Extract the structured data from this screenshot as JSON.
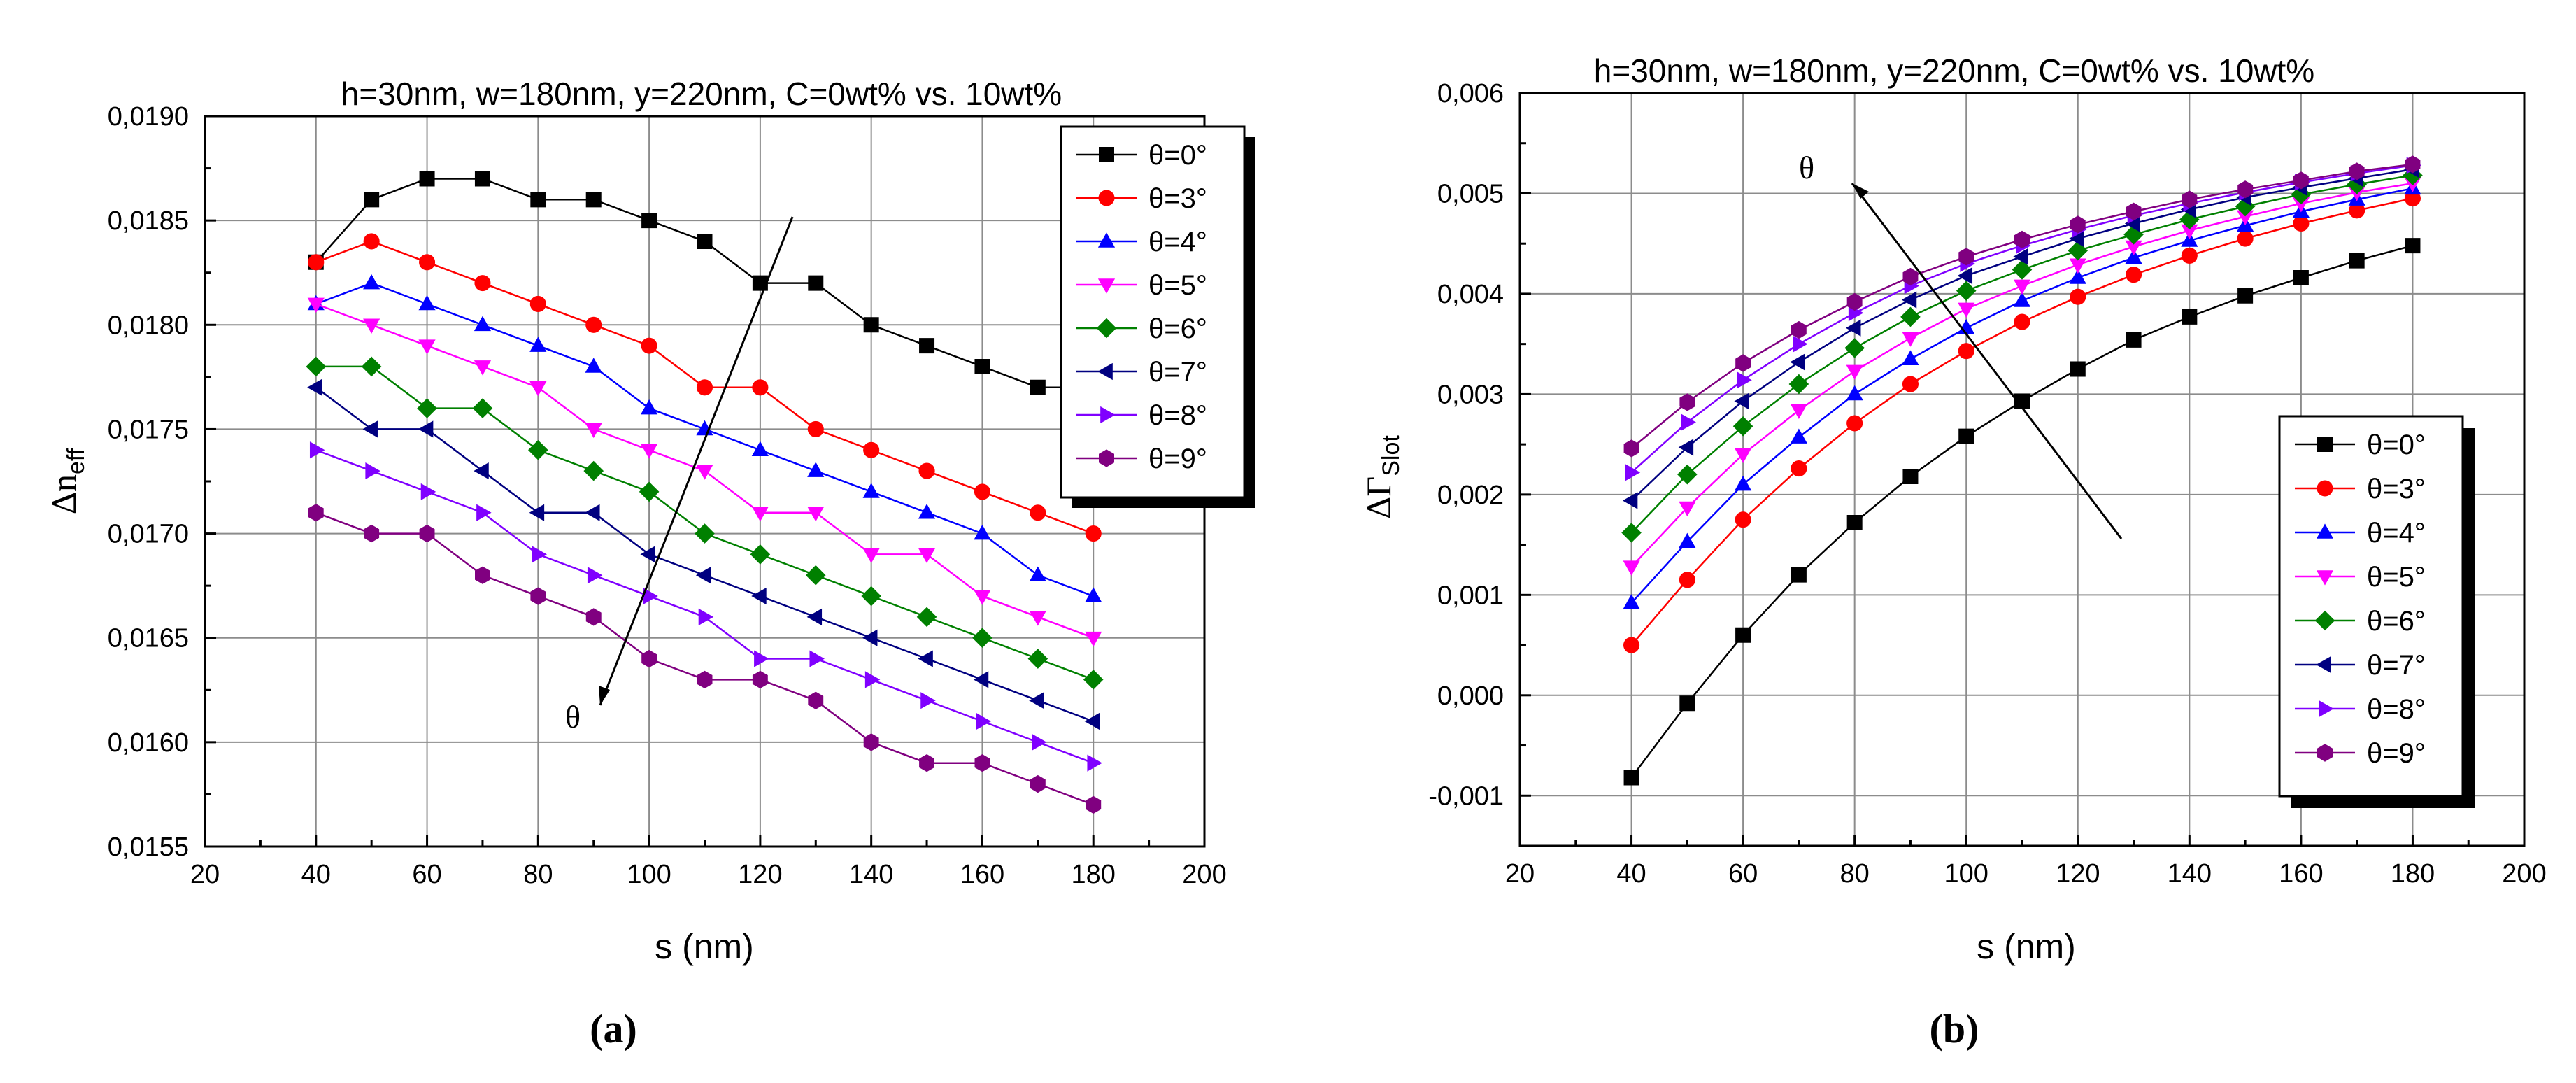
{
  "chart_data": [
    {
      "type": "line",
      "panel_label": "(a)",
      "title": "h=30nm, w=180nm, y=220nm, C=0wt% vs. 10wt%",
      "xlabel": "s (nm)",
      "ylabel": "Δn_eff",
      "xlim": [
        20,
        200
      ],
      "ylim": [
        0.0155,
        0.019
      ],
      "xticks": [
        20,
        40,
        60,
        80,
        100,
        120,
        140,
        160,
        180,
        200
      ],
      "xtick_labels": [
        "20",
        "40",
        "60",
        "80",
        "100",
        "120",
        "140",
        "160",
        "180",
        "200"
      ],
      "yticks": [
        0.0155,
        0.016,
        0.0165,
        0.017,
        0.0175,
        0.018,
        0.0185,
        0.019
      ],
      "ytick_labels": [
        "0,0155",
        "0,0160",
        "0,0165",
        "0,0170",
        "0,0175",
        "0,0180",
        "0,0185",
        "0,0190"
      ],
      "grid": true,
      "legend_position": "top-right",
      "annotation": "θ",
      "x": [
        40,
        50,
        60,
        70,
        80,
        90,
        100,
        110,
        120,
        130,
        140,
        150,
        160,
        170,
        180
      ],
      "series": [
        {
          "name": "θ=0°",
          "color": "#000000",
          "marker": "square",
          "values": [
            0.0183,
            0.0186,
            0.0187,
            0.0187,
            0.0186,
            0.0186,
            0.0185,
            0.0184,
            0.0182,
            0.0182,
            0.018,
            0.0179,
            0.0178,
            0.0177,
            0.0177
          ]
        },
        {
          "name": "θ=3°",
          "color": "#ff0000",
          "marker": "circle",
          "values": [
            0.0183,
            0.0184,
            0.0183,
            0.0182,
            0.0181,
            0.018,
            0.0179,
            0.0177,
            0.0177,
            0.0175,
            0.0174,
            0.0173,
            0.0172,
            0.0171,
            0.017
          ]
        },
        {
          "name": "θ=4°",
          "color": "#0000ff",
          "marker": "triangle-up",
          "values": [
            0.0181,
            0.0182,
            0.0181,
            0.018,
            0.0179,
            0.0178,
            0.0176,
            0.0175,
            0.0174,
            0.0173,
            0.0172,
            0.0171,
            0.017,
            0.0168,
            0.0167
          ]
        },
        {
          "name": "θ=5°",
          "color": "#ff00ff",
          "marker": "triangle-down",
          "values": [
            0.0181,
            0.018,
            0.0179,
            0.0178,
            0.0177,
            0.0175,
            0.0174,
            0.0173,
            0.0171,
            0.0171,
            0.0169,
            0.0169,
            0.0167,
            0.0166,
            0.0165
          ]
        },
        {
          "name": "θ=6°",
          "color": "#008000",
          "marker": "diamond",
          "values": [
            0.0178,
            0.0178,
            0.0176,
            0.0176,
            0.0174,
            0.0173,
            0.0172,
            0.017,
            0.0169,
            0.0168,
            0.0167,
            0.0166,
            0.0165,
            0.0164,
            0.0163
          ]
        },
        {
          "name": "θ=7°",
          "color": "#000080",
          "marker": "triangle-left",
          "values": [
            0.0177,
            0.0175,
            0.0175,
            0.0173,
            0.0171,
            0.0171,
            0.0169,
            0.0168,
            0.0167,
            0.0166,
            0.0165,
            0.0164,
            0.0163,
            0.0162,
            0.0161
          ]
        },
        {
          "name": "θ=8°",
          "color": "#8000ff",
          "marker": "triangle-right",
          "values": [
            0.0174,
            0.0173,
            0.0172,
            0.0171,
            0.0169,
            0.0168,
            0.0167,
            0.0166,
            0.0164,
            0.0164,
            0.0163,
            0.0162,
            0.0161,
            0.016,
            0.0159
          ]
        },
        {
          "name": "θ=9°",
          "color": "#800080",
          "marker": "hexagon",
          "values": [
            0.0171,
            0.017,
            0.017,
            0.0168,
            0.0167,
            0.0166,
            0.0164,
            0.0163,
            0.0163,
            0.0162,
            0.016,
            0.0159,
            0.0159,
            0.0158,
            0.0157
          ]
        }
      ]
    },
    {
      "type": "line",
      "panel_label": "(b)",
      "title": "h=30nm, w=180nm, y=220nm, C=0wt% vs. 10wt%",
      "xlabel": "s (nm)",
      "ylabel": "ΔΓ_Slot",
      "xlim": [
        20,
        200
      ],
      "ylim": [
        -0.0015,
        0.006
      ],
      "xticks": [
        20,
        40,
        60,
        80,
        100,
        120,
        140,
        160,
        180,
        200
      ],
      "xtick_labels": [
        "20",
        "40",
        "60",
        "80",
        "100",
        "120",
        "140",
        "160",
        "180",
        "200"
      ],
      "yticks": [
        -0.001,
        0.0,
        0.001,
        0.002,
        0.003,
        0.004,
        0.005,
        0.006
      ],
      "ytick_labels": [
        "-0,001",
        "0,000",
        "0,001",
        "0,002",
        "0,003",
        "0,004",
        "0,005",
        "0,006"
      ],
      "grid": true,
      "legend_position": "bottom-right",
      "annotation": "θ",
      "x": [
        40,
        50,
        60,
        70,
        80,
        90,
        100,
        110,
        120,
        130,
        140,
        150,
        160,
        170,
        180
      ],
      "series": [
        {
          "name": "θ=0°",
          "color": "#000000",
          "marker": "square",
          "values": [
            -0.00082,
            -8e-05,
            0.0006,
            0.0012,
            0.00172,
            0.00218,
            0.00258,
            0.00293,
            0.00325,
            0.00354,
            0.00377,
            0.00398,
            0.00416,
            0.00433,
            0.00448
          ]
        },
        {
          "name": "θ=3°",
          "color": "#ff0000",
          "marker": "circle",
          "values": [
            0.0005,
            0.00115,
            0.00175,
            0.00226,
            0.00271,
            0.0031,
            0.00343,
            0.00372,
            0.00397,
            0.00419,
            0.00438,
            0.00455,
            0.0047,
            0.00483,
            0.00495
          ]
        },
        {
          "name": "θ=4°",
          "color": "#0000ff",
          "marker": "triangle-up",
          "values": [
            0.00092,
            0.00153,
            0.0021,
            0.00257,
            0.003,
            0.00335,
            0.00366,
            0.00393,
            0.00416,
            0.00436,
            0.00453,
            0.00468,
            0.00482,
            0.00494,
            0.00505
          ]
        },
        {
          "name": "θ=5°",
          "color": "#ff00ff",
          "marker": "triangle-down",
          "values": [
            0.00128,
            0.00187,
            0.0024,
            0.00284,
            0.00323,
            0.00356,
            0.00385,
            0.00408,
            0.00429,
            0.00447,
            0.00463,
            0.00477,
            0.0049,
            0.00501,
            0.0051
          ]
        },
        {
          "name": "θ=6°",
          "color": "#008000",
          "marker": "diamond",
          "values": [
            0.00162,
            0.0022,
            0.00268,
            0.0031,
            0.00346,
            0.00377,
            0.00403,
            0.00424,
            0.00443,
            0.00459,
            0.00474,
            0.00487,
            0.00499,
            0.00509,
            0.00518
          ]
        },
        {
          "name": "θ=7°",
          "color": "#000080",
          "marker": "triangle-left",
          "values": [
            0.00194,
            0.00247,
            0.00293,
            0.00332,
            0.00366,
            0.00394,
            0.00418,
            0.00437,
            0.00455,
            0.0047,
            0.00484,
            0.00496,
            0.00506,
            0.00515,
            0.00524
          ]
        },
        {
          "name": "θ=8°",
          "color": "#8000ff",
          "marker": "triangle-right",
          "values": [
            0.00222,
            0.00272,
            0.00314,
            0.0035,
            0.00381,
            0.00408,
            0.0043,
            0.00448,
            0.00464,
            0.00478,
            0.0049,
            0.00501,
            0.00511,
            0.0052,
            0.00528
          ]
        },
        {
          "name": "θ=9°",
          "color": "#800080",
          "marker": "hexagon",
          "values": [
            0.00246,
            0.00292,
            0.00331,
            0.00364,
            0.00392,
            0.00417,
            0.00437,
            0.00454,
            0.00469,
            0.00482,
            0.00494,
            0.00504,
            0.00513,
            0.00522,
            0.00529
          ]
        }
      ]
    }
  ]
}
